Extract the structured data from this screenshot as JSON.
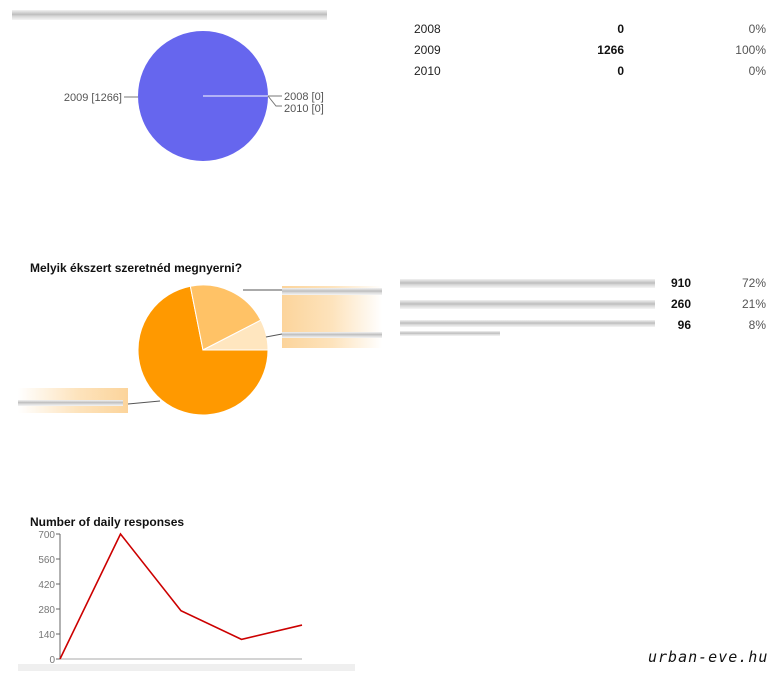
{
  "chart_data": [
    {
      "type": "pie",
      "title": "",
      "slices": [
        {
          "label": "2008",
          "value": 0,
          "color": "#6666ee"
        },
        {
          "label": "2009",
          "value": 1266,
          "color": "#6666ee"
        },
        {
          "label": "2010",
          "value": 0,
          "color": "#6666ee"
        }
      ],
      "slice_labels": {
        "left": "2009 [1266]",
        "right_top": "2008 [0]",
        "right_bottom": "2010 [0]"
      },
      "table": [
        {
          "label": "2008",
          "count": "0",
          "percent": "0%"
        },
        {
          "label": "2009",
          "count": "1266",
          "percent": "100%"
        },
        {
          "label": "2010",
          "count": "0",
          "percent": "0%"
        }
      ]
    },
    {
      "type": "pie",
      "title": "Melyik ékszert szeretnéd megnyerni?",
      "slices": [
        {
          "value": 910,
          "color": "#ff9900"
        },
        {
          "value": 260,
          "color": "#ffc266"
        },
        {
          "value": 96,
          "color": "#ffe6bf"
        }
      ],
      "table": [
        {
          "count": "910",
          "percent": "72%"
        },
        {
          "count": "260",
          "percent": "21%"
        },
        {
          "count": "96",
          "percent": "8%"
        }
      ]
    },
    {
      "type": "line",
      "title": "Number of daily responses",
      "ylim": [
        0,
        700
      ],
      "yticks": [
        "0",
        "140",
        "280",
        "420",
        "560",
        "700"
      ],
      "series": [
        {
          "values": [
            0,
            700,
            270,
            110,
            190
          ],
          "color": "#cc0000"
        }
      ]
    }
  ],
  "watermark": "urban-eve.hu"
}
